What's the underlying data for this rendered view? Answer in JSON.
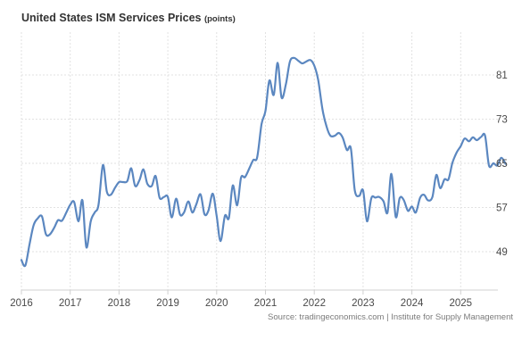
{
  "title": "United States ISM Services Prices",
  "unit": "(points)",
  "source": "Source: tradingeconomics.com | Institute for Supply Management",
  "colors": {
    "line": "#5b87c0",
    "grid": "#e2e2e2",
    "axis": "#d0d0d0"
  },
  "chart_data": {
    "type": "line",
    "title": "United States ISM Services Prices",
    "ylabel": "(points)",
    "x_tick_labels": [
      "2016",
      "2017",
      "2018",
      "2019",
      "2020",
      "2021",
      "2022",
      "2023",
      "2024",
      "2025"
    ],
    "y_tick_labels": [
      "49",
      "57",
      "65",
      "73",
      "81"
    ],
    "ylim": [
      41,
      87
    ],
    "grid": true,
    "series": [
      {
        "x": [
          2016.0,
          2016.08,
          2016.17,
          2016.25,
          2016.33,
          2016.42,
          2016.5,
          2016.58,
          2016.67,
          2016.75,
          2016.83,
          2016.92,
          2017.0,
          2017.08,
          2017.17,
          2017.25,
          2017.33,
          2017.42,
          2017.5,
          2017.58,
          2017.67,
          2017.75,
          2017.83,
          2017.92,
          2018.0,
          2018.08,
          2018.17,
          2018.25,
          2018.33,
          2018.42,
          2018.5,
          2018.58,
          2018.67,
          2018.75,
          2018.83,
          2018.92,
          2019.0,
          2019.08,
          2019.17,
          2019.25,
          2019.33,
          2019.42,
          2019.5,
          2019.58,
          2019.67,
          2019.75,
          2019.83,
          2019.92,
          2020.0,
          2020.08,
          2020.17,
          2020.25,
          2020.33,
          2020.42,
          2020.5,
          2020.58,
          2020.67,
          2020.75,
          2020.83,
          2020.92,
          2021.0,
          2021.08,
          2021.17,
          2021.25,
          2021.33,
          2021.42,
          2021.5,
          2021.58,
          2021.67,
          2021.75,
          2021.83,
          2021.92,
          2022.0,
          2022.08,
          2022.17,
          2022.25,
          2022.33,
          2022.42,
          2022.5,
          2022.58,
          2022.67,
          2022.75,
          2022.83,
          2022.92,
          2023.0,
          2023.08,
          2023.17,
          2023.25,
          2023.33,
          2023.42,
          2023.5,
          2023.58,
          2023.67,
          2023.75,
          2023.83,
          2023.92,
          2024.0,
          2024.08,
          2024.17,
          2024.25,
          2024.33,
          2024.42,
          2024.5,
          2024.58,
          2024.67,
          2024.75,
          2024.83,
          2024.92,
          2025.0,
          2025.08,
          2025.17,
          2025.25,
          2025.33,
          2025.42,
          2025.5,
          2025.58,
          2025.67,
          2025.75,
          2025.83,
          2025.92
        ],
        "y": [
          47.5,
          46.5,
          50.5,
          53.8,
          55.0,
          55.4,
          52.2,
          52.1,
          53.3,
          54.7,
          54.6,
          56.1,
          57.5,
          58.0,
          54.5,
          58.3,
          49.8,
          54.5,
          56.1,
          57.5,
          64.7,
          59.9,
          59.3,
          60.6,
          61.6,
          61.6,
          61.8,
          64.1,
          60.9,
          62.0,
          63.9,
          61.3,
          60.9,
          62.7,
          58.8,
          58.9,
          58.9,
          55.2,
          58.6,
          55.7,
          56.1,
          58.1,
          56.1,
          57.5,
          59.4,
          55.8,
          56.4,
          59.5,
          55.5,
          50.9,
          55.5,
          55.1,
          61.0,
          57.4,
          62.4,
          62.5,
          64.1,
          65.6,
          66.1,
          72.1,
          74.5,
          80.0,
          77.4,
          83.2,
          76.9,
          79.4,
          83.4,
          84.1,
          83.6,
          83.1,
          83.4,
          83.7,
          82.7,
          80.1,
          74.7,
          71.7,
          70.0,
          70.0,
          70.5,
          69.7,
          67.4,
          67.7,
          60.1,
          59.1,
          60.1,
          54.5,
          58.7,
          58.8,
          58.9,
          58.1,
          56.1,
          63.1,
          55.3,
          58.7,
          58.4,
          56.4,
          57.2,
          56.1,
          58.8,
          59.3,
          58.3,
          58.9,
          62.9,
          60.5,
          62.1,
          62.1,
          65.1,
          67.0,
          68.1,
          69.5,
          69.0,
          69.7,
          69.2,
          69.8,
          70.0,
          64.6,
          65.0,
          64.6,
          66.0,
          64.9
        ]
      }
    ]
  }
}
